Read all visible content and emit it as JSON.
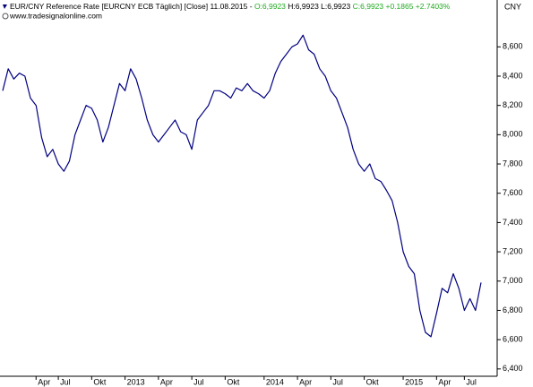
{
  "chart_data": {
    "type": "line",
    "title": "EUR/CNY Reference Rate [EURCNY ECB  Täglich] [Close] 11.08.2015 -",
    "annotations": [
      "O:6,9923",
      "H:6,9923 L:6,9923",
      "C:6,9923 +0.1865 +2.7403%"
    ],
    "source": "www.tradesignalonline.com",
    "y_axis_label": "CNY",
    "color": "#000080",
    "categories": [
      null,
      null,
      null,
      null,
      null,
      null,
      "Apr",
      null,
      null,
      null,
      "Jul",
      null,
      null,
      null,
      null,
      null,
      "Okt",
      null,
      null,
      null,
      null,
      null,
      "2013",
      null,
      null,
      null,
      null,
      null,
      "Apr",
      null,
      null,
      null,
      null,
      null,
      "Jul",
      null,
      null,
      null,
      null,
      null,
      "Okt",
      null,
      null,
      null,
      null,
      null,
      null,
      "2014",
      null,
      null,
      null,
      null,
      null,
      "Apr",
      null,
      null,
      null,
      null,
      null,
      "Jul",
      null,
      null,
      null,
      null,
      null,
      "Okt",
      null,
      null,
      null,
      null,
      null,
      null,
      "2015",
      null,
      null,
      null,
      null,
      null,
      "Apr",
      null,
      null,
      null,
      null,
      "Jul",
      null,
      null,
      null
    ],
    "values": [
      8.3,
      8.45,
      8.38,
      8.42,
      8.4,
      8.25,
      8.2,
      7.98,
      7.85,
      7.9,
      7.8,
      7.75,
      7.82,
      8.0,
      8.1,
      8.2,
      8.18,
      8.1,
      7.95,
      8.05,
      8.2,
      8.35,
      8.3,
      8.45,
      8.38,
      8.25,
      8.1,
      8.0,
      7.95,
      8.0,
      8.05,
      8.1,
      8.02,
      8.0,
      7.9,
      8.1,
      8.15,
      8.2,
      8.3,
      8.3,
      8.28,
      8.25,
      8.32,
      8.3,
      8.35,
      8.3,
      8.28,
      8.25,
      8.3,
      8.42,
      8.5,
      8.55,
      8.6,
      8.62,
      8.68,
      8.58,
      8.55,
      8.45,
      8.4,
      8.3,
      8.25,
      8.15,
      8.05,
      7.9,
      7.8,
      7.75,
      7.8,
      7.7,
      7.68,
      7.62,
      7.55,
      7.4,
      7.2,
      7.1,
      7.05,
      6.8,
      6.65,
      6.62,
      6.78,
      6.95,
      6.92,
      7.05,
      6.95,
      6.8,
      6.88,
      6.8,
      6.99
    ],
    "ylim": [
      6.35,
      8.92
    ],
    "yticks": [
      {
        "value": 6.4,
        "label": "6,400"
      },
      {
        "value": 6.6,
        "label": "6,600"
      },
      {
        "value": 6.8,
        "label": "6,800"
      },
      {
        "value": 7.0,
        "label": "7,000"
      },
      {
        "value": 7.2,
        "label": "7,200"
      },
      {
        "value": 7.4,
        "label": "7,400"
      },
      {
        "value": 7.6,
        "label": "7,600"
      },
      {
        "value": 7.8,
        "label": "7,800"
      },
      {
        "value": 8.0,
        "label": "8,000"
      },
      {
        "value": 8.2,
        "label": "8,200"
      },
      {
        "value": 8.4,
        "label": "8,400"
      },
      {
        "value": 8.6,
        "label": "8,600"
      }
    ]
  }
}
